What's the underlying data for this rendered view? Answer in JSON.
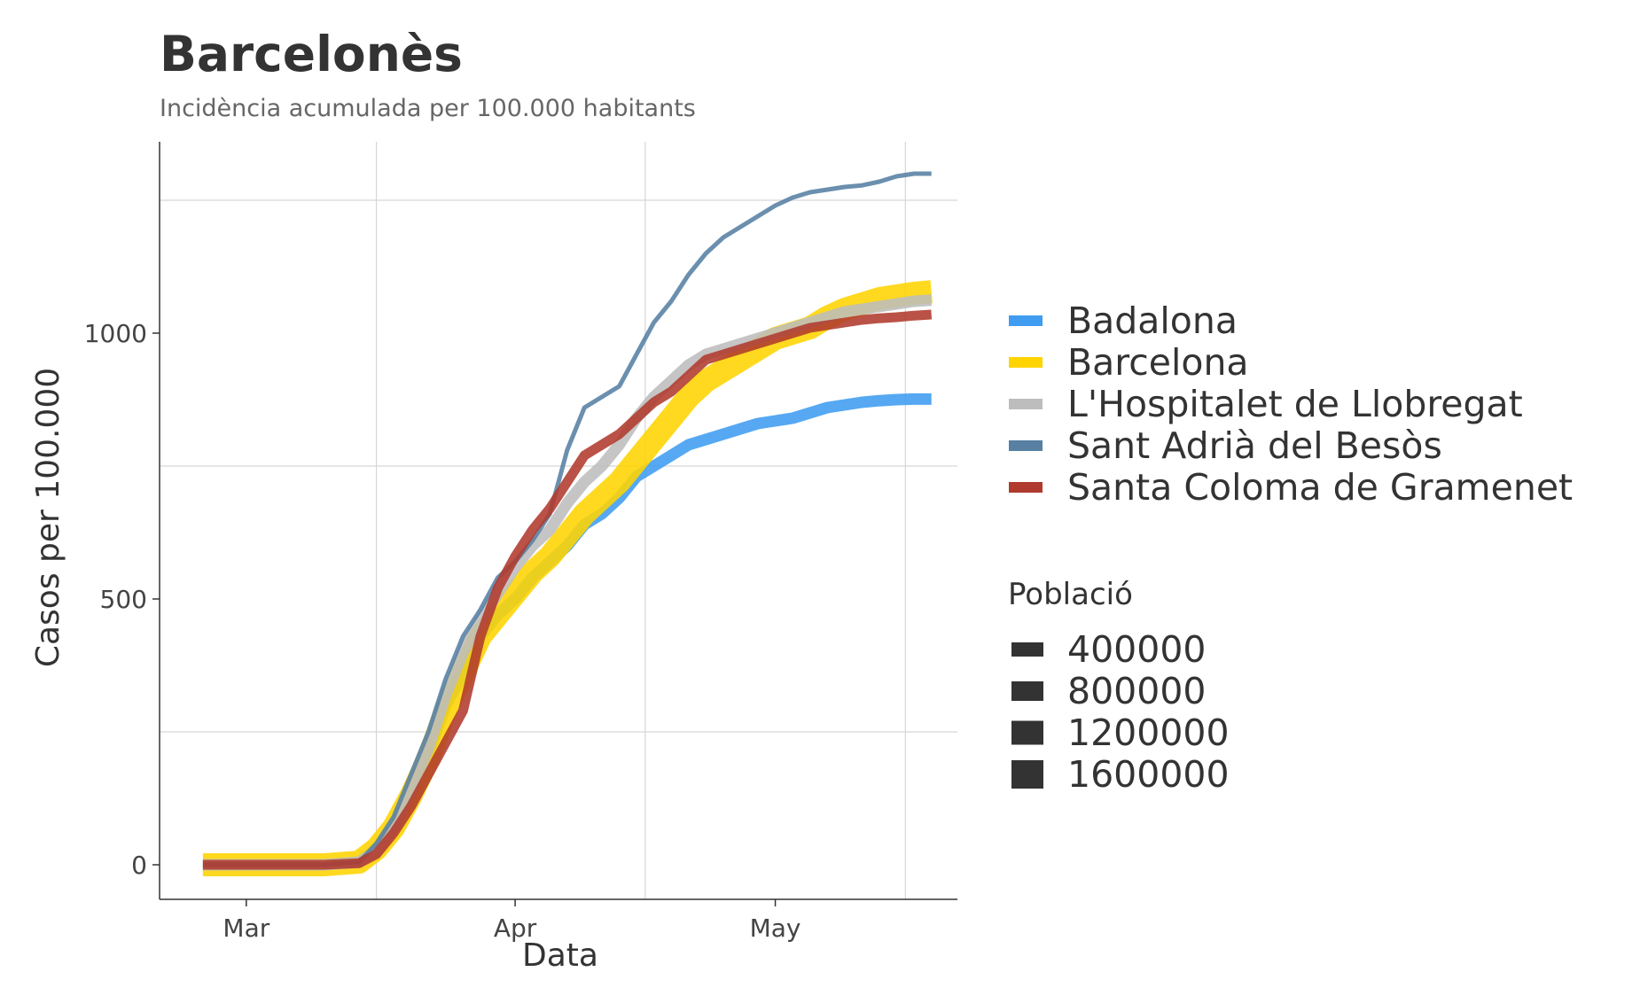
{
  "chart_data": {
    "type": "line",
    "title": "Barcelonès",
    "subtitle": "Incidència acumulada per 100.000 habitants",
    "xlabel": "Data",
    "ylabel": "Casos per 100.000",
    "x_ticks": [
      "Mar",
      "Apr",
      "May"
    ],
    "y_ticks": [
      "0",
      "500",
      "1000"
    ],
    "xlim": [
      "2020-02-20",
      "2020-05-22"
    ],
    "ylim": [
      -65,
      1360
    ],
    "grid": true,
    "legend_position": "right",
    "x": [
      "2020-02-25",
      "2020-03-05",
      "2020-03-10",
      "2020-03-14",
      "2020-03-16",
      "2020-03-18",
      "2020-03-20",
      "2020-03-22",
      "2020-03-24",
      "2020-03-26",
      "2020-03-28",
      "2020-03-30",
      "2020-04-01",
      "2020-04-03",
      "2020-04-05",
      "2020-04-07",
      "2020-04-09",
      "2020-04-11",
      "2020-04-13",
      "2020-04-15",
      "2020-04-17",
      "2020-04-19",
      "2020-04-21",
      "2020-04-23",
      "2020-04-25",
      "2020-04-27",
      "2020-04-29",
      "2020-05-01",
      "2020-05-03",
      "2020-05-05",
      "2020-05-07",
      "2020-05-09",
      "2020-05-11",
      "2020-05-13",
      "2020-05-15",
      "2020-05-17",
      "2020-05-19"
    ],
    "series": [
      {
        "name": "Badalona",
        "color": "#3f9cf0",
        "population": 218000,
        "values": [
          0,
          0,
          0,
          5,
          30,
          70,
          130,
          210,
          300,
          360,
          430,
          470,
          500,
          540,
          570,
          600,
          640,
          660,
          690,
          730,
          750,
          770,
          790,
          800,
          810,
          820,
          830,
          835,
          840,
          850,
          860,
          865,
          870,
          873,
          875,
          876,
          876
        ]
      },
      {
        "name": "Barcelona",
        "color": "#ffd400",
        "population": 1620000,
        "values": [
          0,
          0,
          0,
          5,
          30,
          70,
          130,
          200,
          290,
          360,
          430,
          470,
          510,
          550,
          580,
          620,
          660,
          690,
          720,
          760,
          800,
          840,
          880,
          910,
          930,
          950,
          970,
          990,
          1000,
          1010,
          1030,
          1045,
          1055,
          1065,
          1070,
          1075,
          1078
        ]
      },
      {
        "name": "L'Hospitalet de Llobregat",
        "color": "#bdbdbd",
        "population": 264000,
        "values": [
          0,
          0,
          0,
          5,
          25,
          70,
          140,
          220,
          320,
          400,
          460,
          510,
          560,
          600,
          630,
          680,
          720,
          750,
          790,
          840,
          880,
          910,
          940,
          960,
          970,
          980,
          990,
          1000,
          1010,
          1020,
          1030,
          1040,
          1045,
          1050,
          1055,
          1060,
          1062
        ]
      },
      {
        "name": "Sant Adrià del Besòs",
        "color": "#5780a3",
        "population": 37000,
        "values": [
          0,
          0,
          0,
          5,
          40,
          90,
          170,
          250,
          350,
          430,
          480,
          540,
          570,
          610,
          660,
          780,
          860,
          880,
          900,
          960,
          1020,
          1060,
          1110,
          1150,
          1180,
          1200,
          1220,
          1240,
          1255,
          1265,
          1270,
          1275,
          1278,
          1285,
          1295,
          1300,
          1300
        ]
      },
      {
        "name": "Santa Coloma de Gramenet",
        "color": "#b03a2e",
        "population": 118000,
        "values": [
          0,
          0,
          0,
          3,
          20,
          60,
          110,
          170,
          230,
          290,
          430,
          520,
          580,
          630,
          670,
          720,
          770,
          790,
          810,
          840,
          870,
          890,
          920,
          950,
          960,
          970,
          980,
          990,
          1000,
          1010,
          1015,
          1020,
          1025,
          1028,
          1030,
          1033,
          1035
        ]
      }
    ],
    "size_legend": {
      "title": "Població",
      "values": [
        "400000",
        "800000",
        "1200000",
        "1600000"
      ]
    }
  }
}
